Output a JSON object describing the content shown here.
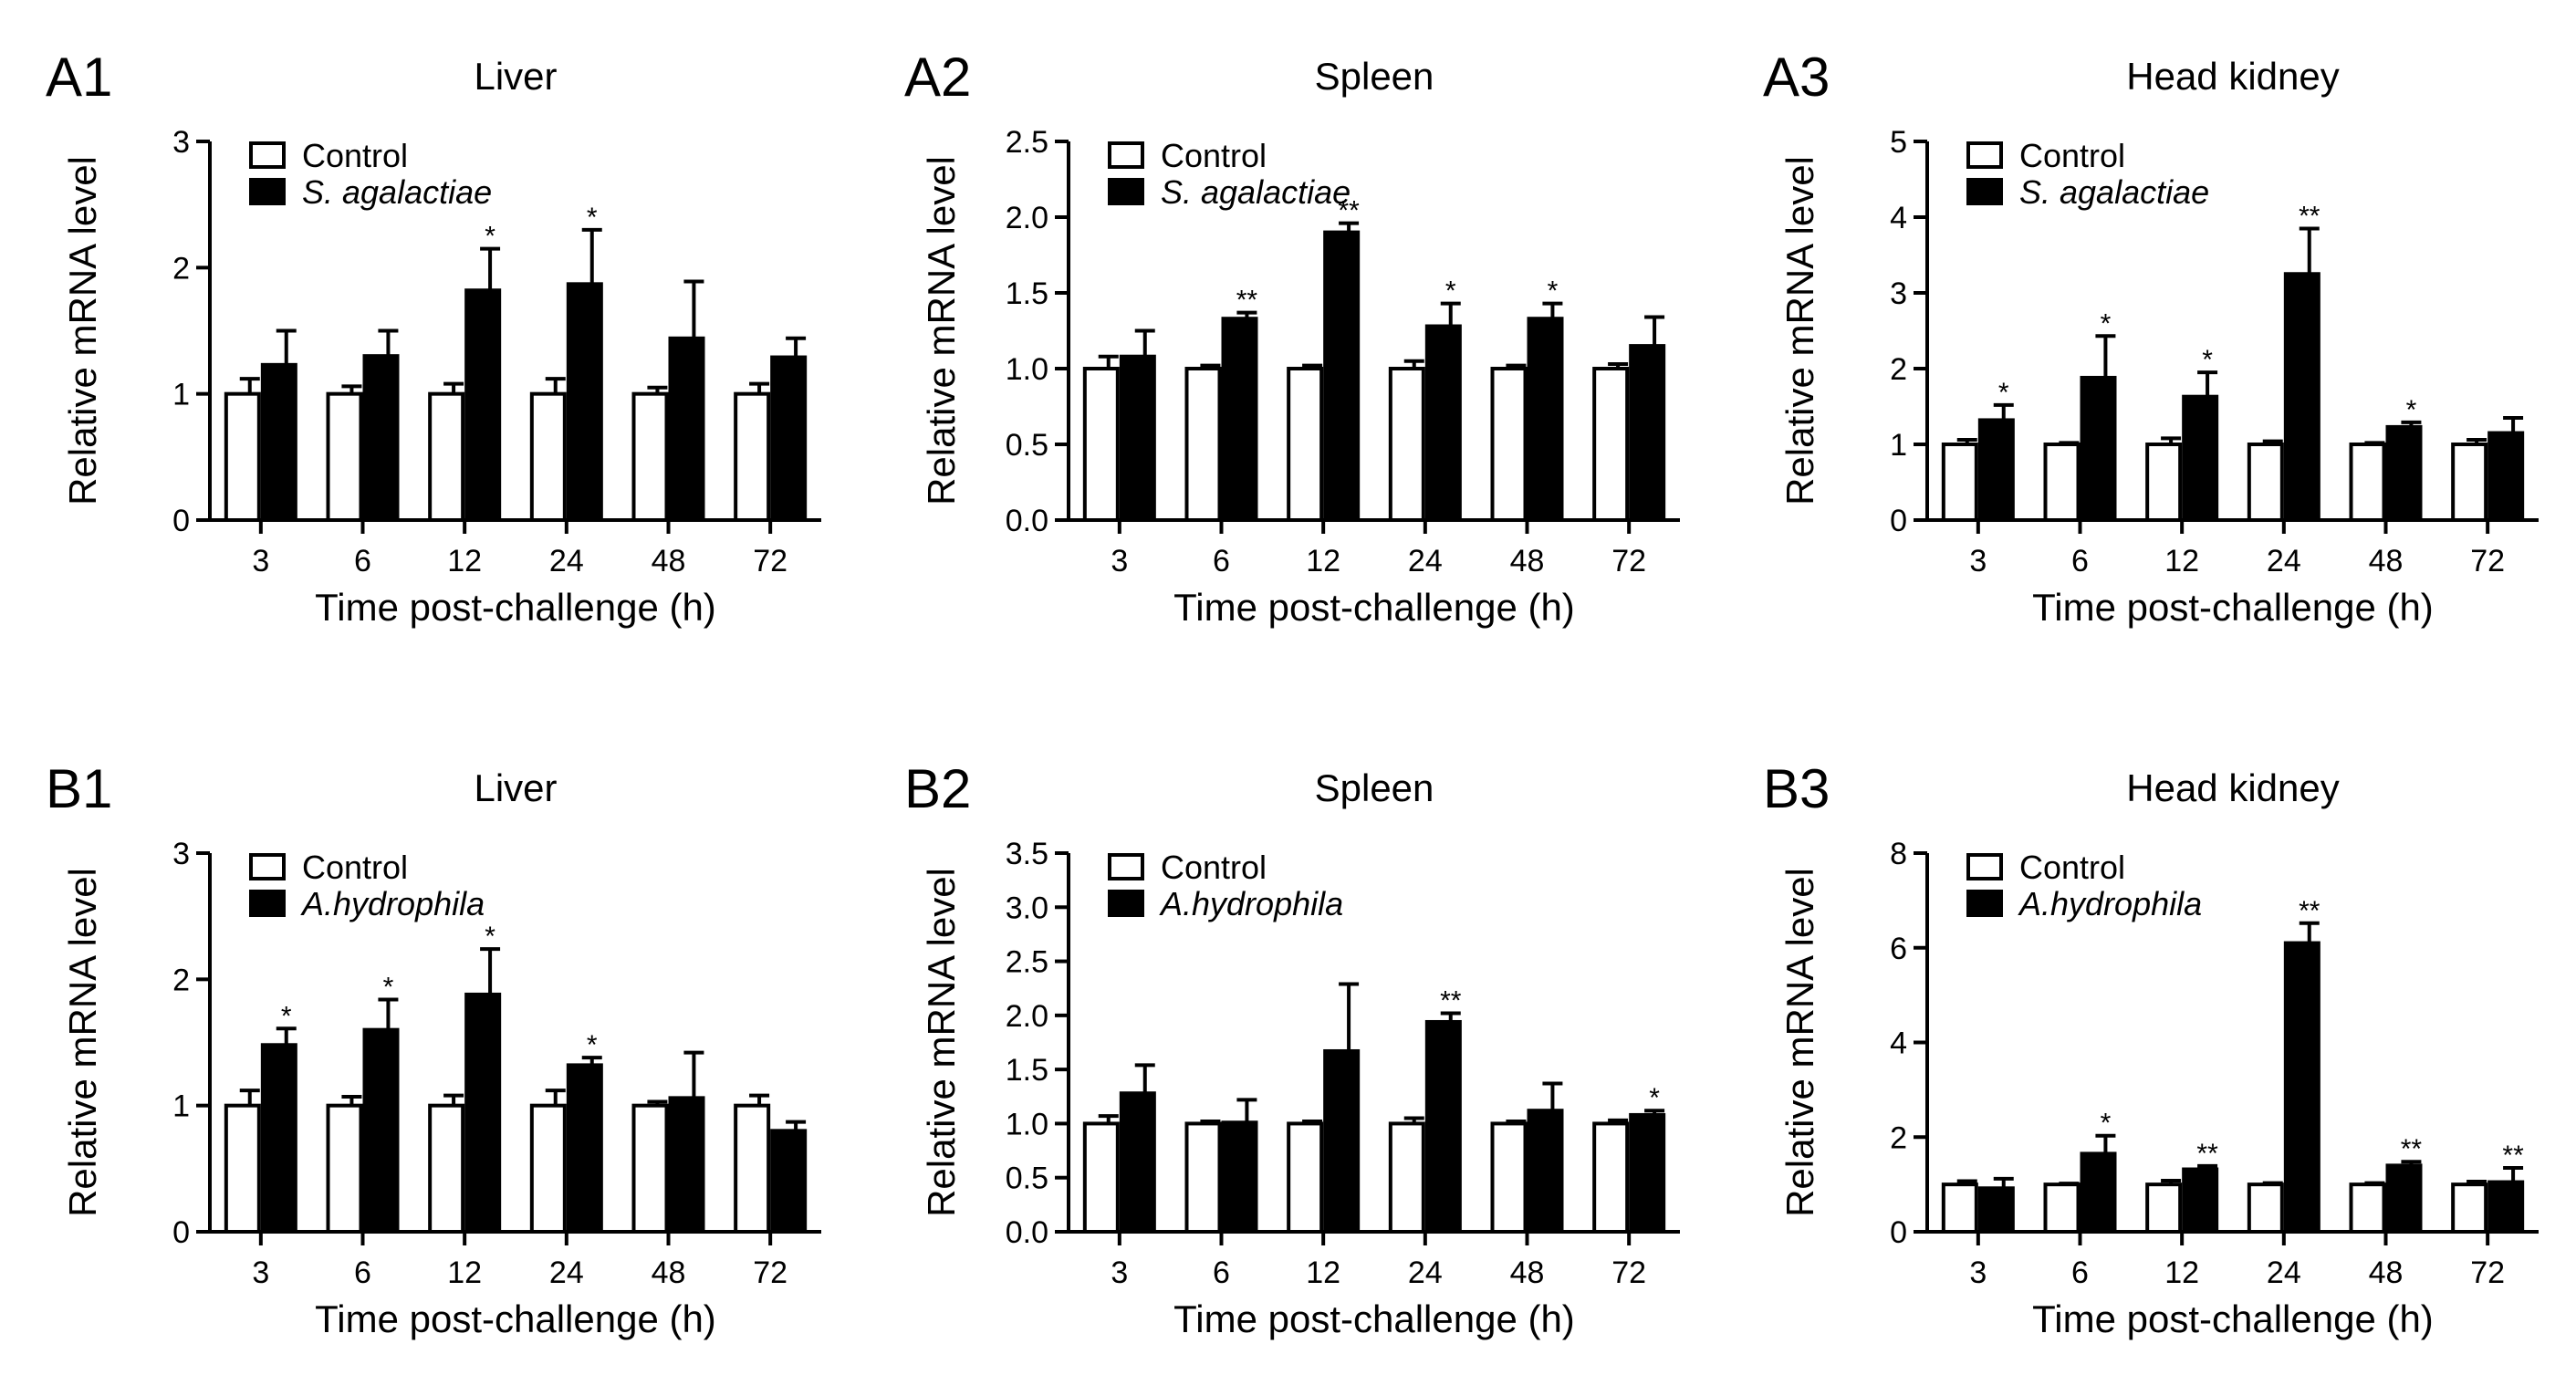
{
  "figure": {
    "x_axis_label": "Time post-challenge (h)",
    "y_axis_label": "Relative mRNA level",
    "legend_control": "Control",
    "colors": {
      "control_fill": "#ffffff",
      "treated_fill": "#000000",
      "stroke": "#000000"
    }
  },
  "chart_data": [
    {
      "panel": "A1",
      "title": "Liver",
      "type": "bar",
      "xlabel": "Time post-challenge (h)",
      "ylabel": "Relative mRNA level",
      "categories": [
        "3",
        "6",
        "12",
        "24",
        "48",
        "72"
      ],
      "ylim": [
        0,
        3
      ],
      "yticks": [
        "0",
        "1",
        "2",
        "3"
      ],
      "legend": "top-left",
      "series": [
        {
          "name": "Control",
          "values": [
            1.0,
            1.0,
            1.0,
            1.0,
            1.0,
            1.0
          ],
          "errors": [
            0.12,
            0.06,
            0.08,
            0.12,
            0.05,
            0.08
          ]
        },
        {
          "name": "S. agalactiae",
          "italic": true,
          "values": [
            1.23,
            1.3,
            1.82,
            1.87,
            1.44,
            1.29
          ],
          "errors": [
            0.27,
            0.2,
            0.33,
            0.43,
            0.45,
            0.15
          ],
          "sig": [
            "",
            "",
            "*",
            "*",
            "",
            ""
          ]
        }
      ]
    },
    {
      "panel": "A2",
      "title": "Spleen",
      "type": "bar",
      "xlabel": "Time post-challenge (h)",
      "ylabel": "Relative mRNA level",
      "categories": [
        "3",
        "6",
        "12",
        "24",
        "48",
        "72"
      ],
      "ylim": [
        0,
        2.5
      ],
      "yticks": [
        "0.0",
        "0.5",
        "1.0",
        "1.5",
        "2.0",
        "2.5"
      ],
      "legend": "top-left",
      "series": [
        {
          "name": "Control",
          "values": [
            1.0,
            1.0,
            1.0,
            1.0,
            1.0,
            1.0
          ],
          "errors": [
            0.08,
            0.02,
            0.02,
            0.05,
            0.02,
            0.03
          ]
        },
        {
          "name": "S. agalactiae",
          "italic": true,
          "values": [
            1.08,
            1.33,
            1.9,
            1.28,
            1.33,
            1.15
          ],
          "errors": [
            0.17,
            0.04,
            0.06,
            0.15,
            0.1,
            0.19
          ],
          "sig": [
            "",
            "**",
            "**",
            "*",
            "*",
            ""
          ]
        }
      ]
    },
    {
      "panel": "A3",
      "title": "Head kidney",
      "type": "bar",
      "xlabel": "Time post-challenge (h)",
      "ylabel": "Relative mRNA level",
      "categories": [
        "3",
        "6",
        "12",
        "24",
        "48",
        "72"
      ],
      "ylim": [
        0,
        5
      ],
      "yticks": [
        "0",
        "1",
        "2",
        "3",
        "4",
        "5"
      ],
      "legend": "top-left",
      "series": [
        {
          "name": "Control",
          "values": [
            1.0,
            1.0,
            1.0,
            1.0,
            1.0,
            1.0
          ],
          "errors": [
            0.06,
            0.02,
            0.08,
            0.04,
            0.02,
            0.06
          ]
        },
        {
          "name": "S. agalactiae",
          "italic": true,
          "values": [
            1.32,
            1.88,
            1.63,
            3.25,
            1.23,
            1.15
          ],
          "errors": [
            0.2,
            0.55,
            0.32,
            0.6,
            0.06,
            0.2
          ],
          "sig": [
            "*",
            "*",
            "*",
            "**",
            "*",
            ""
          ]
        }
      ]
    },
    {
      "panel": "B1",
      "title": "Liver",
      "type": "bar",
      "xlabel": "Time post-challenge (h)",
      "ylabel": "Relative mRNA level",
      "categories": [
        "3",
        "6",
        "12",
        "24",
        "48",
        "72"
      ],
      "ylim": [
        0,
        3
      ],
      "yticks": [
        "0",
        "1",
        "2",
        "3"
      ],
      "legend": "top-left",
      "series": [
        {
          "name": "Control",
          "values": [
            1.0,
            1.0,
            1.0,
            1.0,
            1.0,
            1.0
          ],
          "errors": [
            0.12,
            0.07,
            0.08,
            0.12,
            0.03,
            0.08
          ]
        },
        {
          "name": "A.hydrophila",
          "italic": true,
          "values": [
            1.48,
            1.6,
            1.88,
            1.32,
            1.06,
            0.8
          ],
          "errors": [
            0.13,
            0.24,
            0.36,
            0.06,
            0.36,
            0.07
          ],
          "sig": [
            "*",
            "*",
            "*",
            "*",
            "",
            ""
          ]
        }
      ]
    },
    {
      "panel": "B2",
      "title": "Spleen",
      "type": "bar",
      "xlabel": "Time post-challenge (h)",
      "ylabel": "Relative mRNA level",
      "categories": [
        "3",
        "6",
        "12",
        "24",
        "48",
        "72"
      ],
      "ylim": [
        0,
        3.5
      ],
      "yticks": [
        "0.0",
        "0.5",
        "1.0",
        "1.5",
        "2.0",
        "2.5",
        "3.0",
        "3.5"
      ],
      "legend": "top-left",
      "series": [
        {
          "name": "Control",
          "values": [
            1.0,
            1.0,
            1.0,
            1.0,
            1.0,
            1.0
          ],
          "errors": [
            0.07,
            0.02,
            0.02,
            0.05,
            0.02,
            0.03
          ]
        },
        {
          "name": "A.hydrophila",
          "italic": true,
          "values": [
            1.28,
            1.01,
            1.67,
            1.94,
            1.12,
            1.08
          ],
          "errors": [
            0.26,
            0.21,
            0.62,
            0.08,
            0.25,
            0.04
          ],
          "sig": [
            "",
            "",
            "",
            "**",
            "",
            "*"
          ]
        }
      ]
    },
    {
      "panel": "B3",
      "title": "Head kidney",
      "type": "bar",
      "xlabel": "Time post-challenge (h)",
      "ylabel": "Relative mRNA level",
      "categories": [
        "3",
        "6",
        "12",
        "24",
        "48",
        "72"
      ],
      "ylim": [
        0,
        8
      ],
      "yticks": [
        "0",
        "2",
        "4",
        "6",
        "8"
      ],
      "legend": "top-left",
      "series": [
        {
          "name": "Control",
          "values": [
            1.0,
            1.0,
            1.0,
            1.0,
            1.0,
            1.0
          ],
          "errors": [
            0.07,
            0.02,
            0.08,
            0.03,
            0.03,
            0.06
          ]
        },
        {
          "name": "A.hydrophila",
          "italic": true,
          "values": [
            0.92,
            1.65,
            1.32,
            6.1,
            1.4,
            1.05
          ],
          "errors": [
            0.2,
            0.38,
            0.07,
            0.42,
            0.08,
            0.3
          ],
          "sig": [
            "",
            "*",
            "**",
            "**",
            "**",
            "**"
          ]
        }
      ]
    }
  ]
}
